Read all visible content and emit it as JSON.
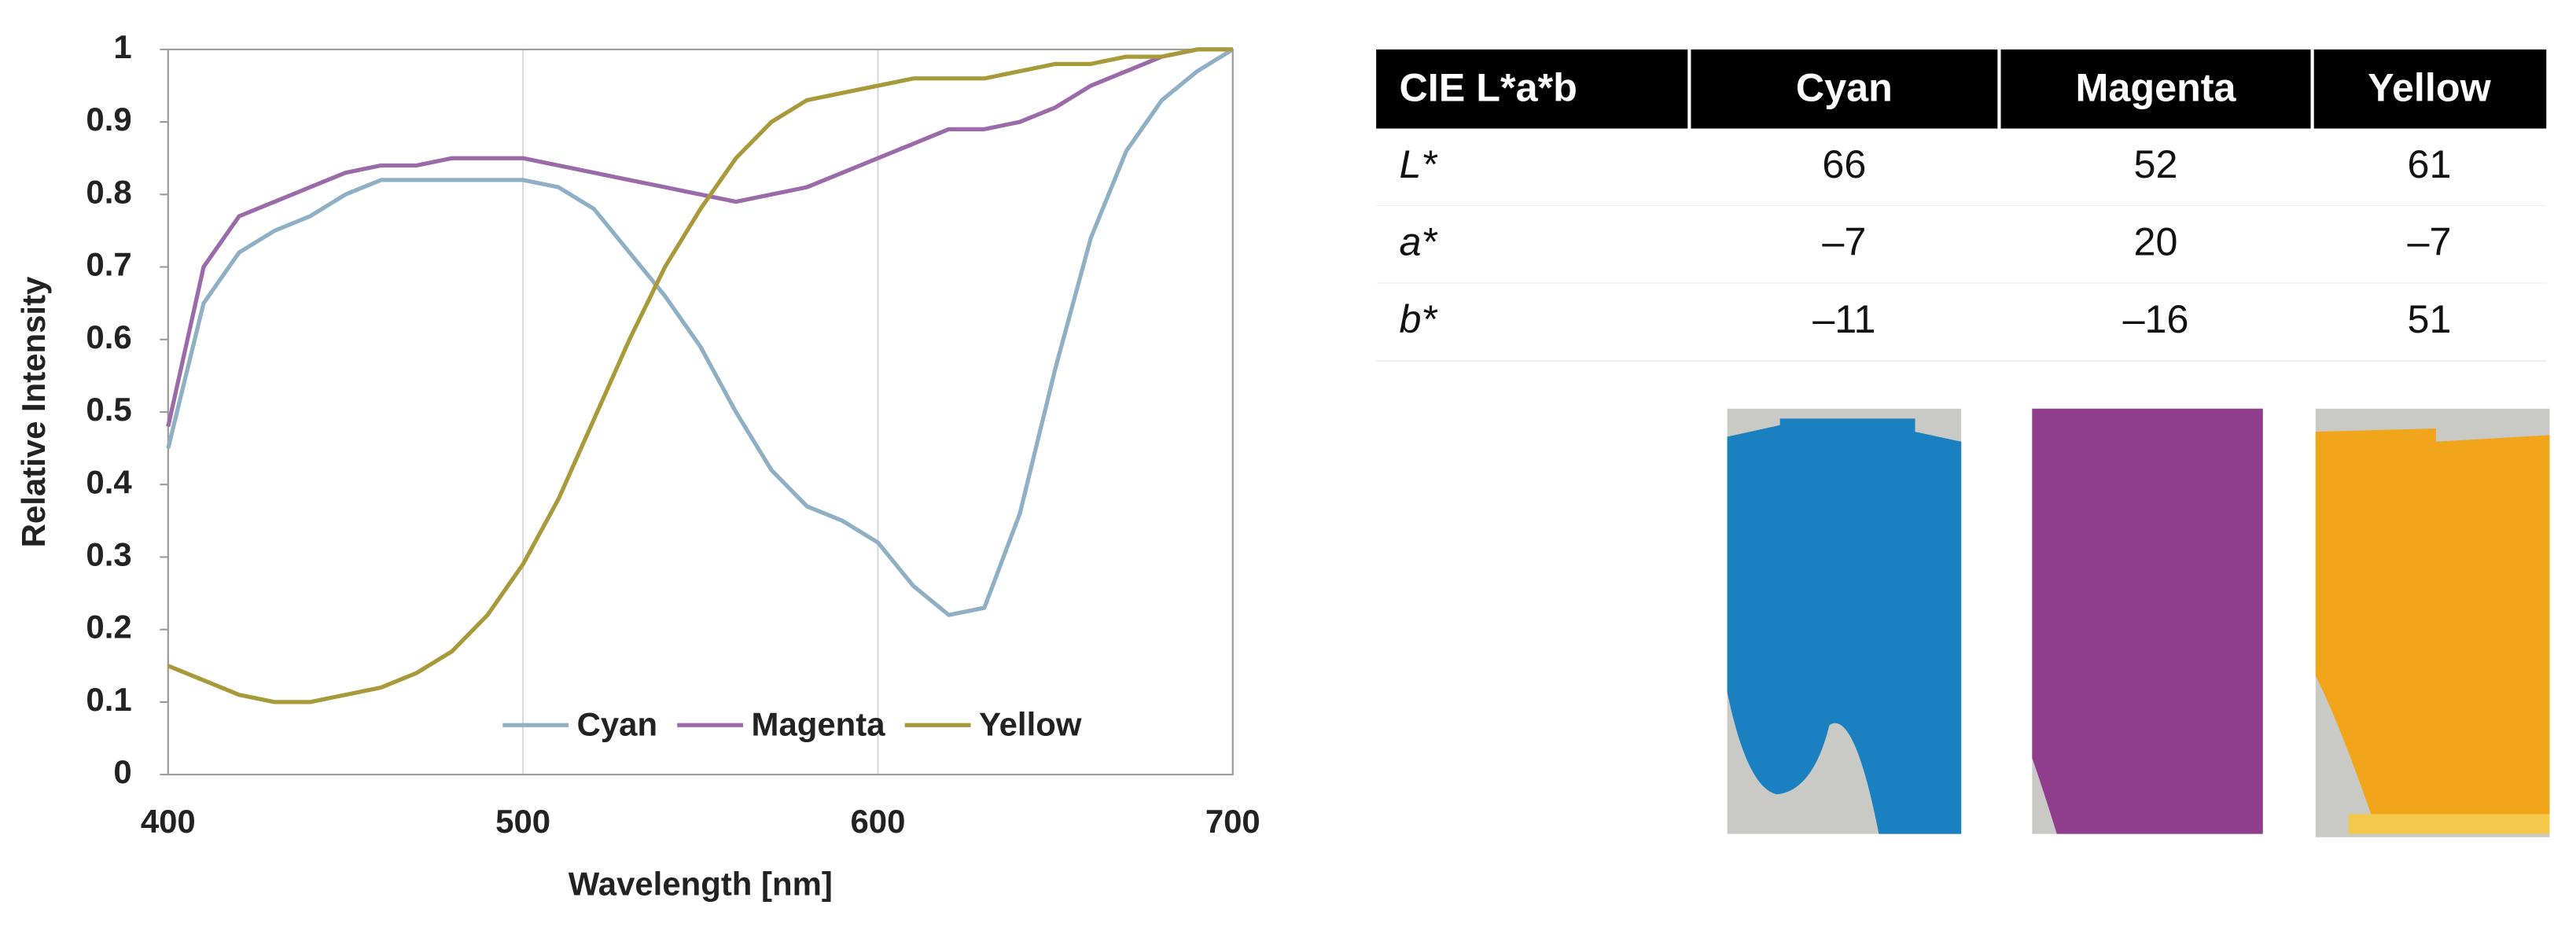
{
  "chart_data": {
    "type": "line",
    "xlabel": "Wavelength [nm]",
    "ylabel": "Relative Intensity",
    "x": [
      400,
      410,
      420,
      430,
      440,
      450,
      460,
      470,
      480,
      490,
      500,
      510,
      520,
      530,
      540,
      550,
      560,
      570,
      580,
      590,
      600,
      610,
      620,
      630,
      640,
      650,
      660,
      670,
      680,
      690,
      700
    ],
    "series": [
      {
        "name": "Cyan",
        "color": "#8fb0c4",
        "values": [
          0.45,
          0.65,
          0.72,
          0.75,
          0.77,
          0.8,
          0.82,
          0.82,
          0.82,
          0.82,
          0.82,
          0.81,
          0.78,
          0.72,
          0.66,
          0.59,
          0.5,
          0.42,
          0.37,
          0.35,
          0.32,
          0.26,
          0.22,
          0.23,
          0.36,
          0.56,
          0.74,
          0.86,
          0.93,
          0.97,
          1.0
        ]
      },
      {
        "name": "Magenta",
        "color": "#9b6aa8",
        "values": [
          0.48,
          0.7,
          0.77,
          0.79,
          0.81,
          0.83,
          0.84,
          0.84,
          0.85,
          0.85,
          0.85,
          0.84,
          0.83,
          0.82,
          0.81,
          0.8,
          0.79,
          0.8,
          0.81,
          0.83,
          0.85,
          0.87,
          0.89,
          0.89,
          0.9,
          0.92,
          0.95,
          0.97,
          0.99,
          1.0,
          1.0
        ]
      },
      {
        "name": "Yellow",
        "color": "#a89a3a",
        "values": [
          0.15,
          0.13,
          0.11,
          0.1,
          0.1,
          0.11,
          0.12,
          0.14,
          0.17,
          0.22,
          0.29,
          0.38,
          0.49,
          0.6,
          0.7,
          0.78,
          0.85,
          0.9,
          0.93,
          0.94,
          0.95,
          0.96,
          0.96,
          0.96,
          0.97,
          0.98,
          0.98,
          0.99,
          0.99,
          1.0,
          1.0
        ]
      }
    ],
    "xlim": [
      400,
      700
    ],
    "xticks": [
      400,
      500,
      600,
      700
    ],
    "ylim": [
      0,
      1
    ],
    "yticks": [
      0,
      0.1,
      0.2,
      0.3,
      0.4,
      0.5,
      0.6,
      0.7,
      0.8,
      0.9,
      1
    ],
    "xgrid": true,
    "legend": "lower right"
  },
  "table": {
    "header": [
      "CIE  L*a*b",
      "Cyan",
      "Magenta",
      "Yellow"
    ],
    "rows": [
      [
        "L*",
        "66",
        "52",
        "61"
      ],
      [
        "a*",
        "–7",
        "20",
        "–7"
      ],
      [
        "b*",
        "–11",
        "–16",
        "51"
      ]
    ]
  }
}
